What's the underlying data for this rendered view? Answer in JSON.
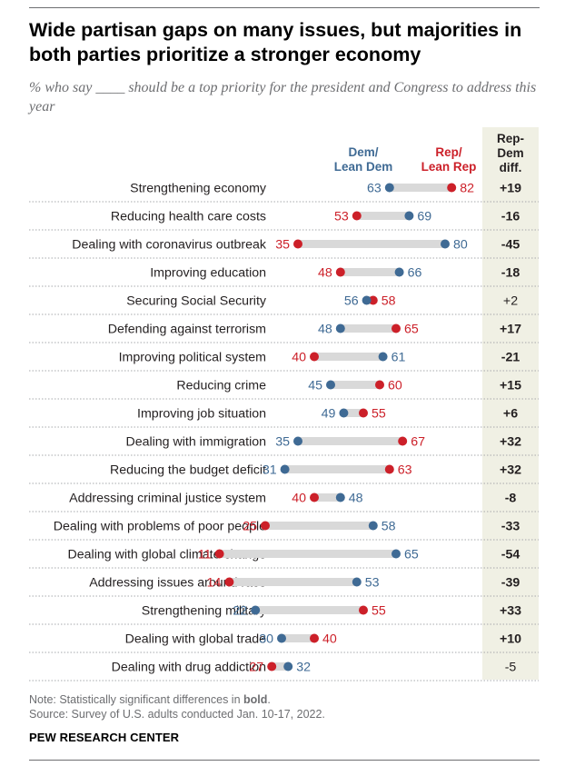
{
  "title": "Wide partisan gaps on many issues, but majorities in both parties prioritize a stronger economy",
  "subtitle": "% who say ____ should be a top priority for the president and Congress to address this year",
  "legend": {
    "dem_line1": "Dem/",
    "dem_line2": "Lean Dem",
    "rep_line1": "Rep/",
    "rep_line2": "Lean Rep",
    "diff_line1": "Rep-",
    "diff_line2": "Dem",
    "diff_line3": "diff."
  },
  "colors": {
    "dem": "#3f6a94",
    "rep": "#cc2029",
    "connector": "#d9d9d9"
  },
  "notes": {
    "note_prefix": "Note: Statistically significant differences in ",
    "note_bold": "bold",
    "note_suffix": ".",
    "source": "Source: Survey of U.S. adults conducted Jan. 10-17, 2022."
  },
  "brand": "PEW RESEARCH CENTER",
  "chart_data": {
    "type": "dot-plot",
    "series": [
      {
        "name": "Dem/Lean Dem",
        "values": [
          63,
          69,
          80,
          66,
          56,
          48,
          61,
          45,
          49,
          35,
          31,
          48,
          58,
          65,
          53,
          22,
          30,
          32
        ]
      },
      {
        "name": "Rep/Lean Rep",
        "values": [
          82,
          53,
          35,
          48,
          58,
          65,
          40,
          60,
          55,
          67,
          63,
          40,
          25,
          11,
          14,
          55,
          40,
          27
        ]
      }
    ],
    "rows": [
      {
        "label": "Strengthening economy",
        "dem": 63,
        "rep": 82,
        "diff": "+19",
        "significant": true
      },
      {
        "label": "Reducing health care costs",
        "dem": 69,
        "rep": 53,
        "diff": "-16",
        "significant": true
      },
      {
        "label": "Dealing with coronavirus outbreak",
        "dem": 80,
        "rep": 35,
        "diff": "-45",
        "significant": true
      },
      {
        "label": "Improving education",
        "dem": 66,
        "rep": 48,
        "diff": "-18",
        "significant": true
      },
      {
        "label": "Securing Social Security",
        "dem": 56,
        "rep": 58,
        "diff": "+2",
        "significant": false
      },
      {
        "label": "Defending against terrorism",
        "dem": 48,
        "rep": 65,
        "diff": "+17",
        "significant": true
      },
      {
        "label": "Improving political system",
        "dem": 61,
        "rep": 40,
        "diff": "-21",
        "significant": true
      },
      {
        "label": "Reducing crime",
        "dem": 45,
        "rep": 60,
        "diff": "+15",
        "significant": true
      },
      {
        "label": "Improving job situation",
        "dem": 49,
        "rep": 55,
        "diff": "+6",
        "significant": true
      },
      {
        "label": "Dealing with immigration",
        "dem": 35,
        "rep": 67,
        "diff": "+32",
        "significant": true
      },
      {
        "label": "Reducing the budget deficit",
        "dem": 31,
        "rep": 63,
        "diff": "+32",
        "significant": true
      },
      {
        "label": "Addressing criminal justice system",
        "dem": 48,
        "rep": 40,
        "diff": "-8",
        "significant": true
      },
      {
        "label": "Dealing with problems of poor people",
        "dem": 58,
        "rep": 25,
        "diff": "-33",
        "significant": true
      },
      {
        "label": "Dealing with global climate change",
        "dem": 65,
        "rep": 11,
        "diff": "-54",
        "significant": true
      },
      {
        "label": "Addressing issues around race",
        "dem": 53,
        "rep": 14,
        "diff": "-39",
        "significant": true
      },
      {
        "label": "Strengthening military",
        "dem": 22,
        "rep": 55,
        "diff": "+33",
        "significant": true
      },
      {
        "label": "Dealing with global trade",
        "dem": 30,
        "rep": 40,
        "diff": "+10",
        "significant": true
      },
      {
        "label": "Dealing with drug addiction",
        "dem": 32,
        "rep": 27,
        "diff": "-5",
        "significant": false
      }
    ]
  }
}
